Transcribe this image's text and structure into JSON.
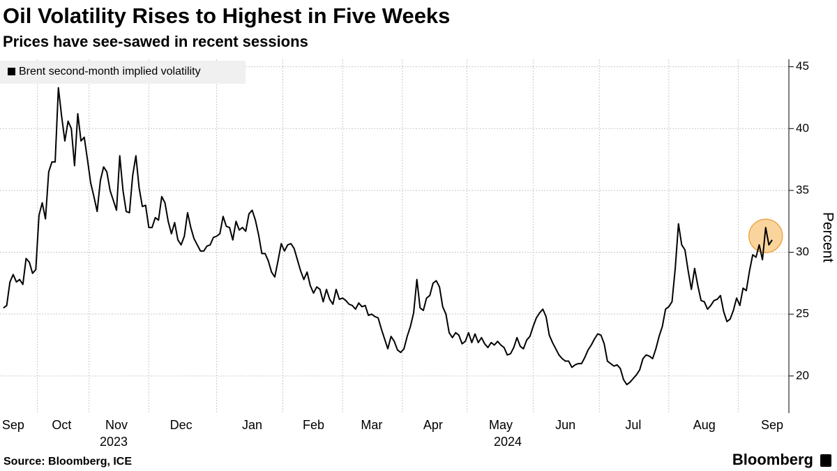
{
  "chart_data": {
    "type": "line",
    "title": "Oil Volatility Rises to Highest in Five Weeks",
    "subtitle": "Prices have see-sawed in recent sessions",
    "y_label": "Percent",
    "categories": [
      null,
      null,
      null,
      "Sep",
      null,
      null,
      null,
      null,
      null,
      null,
      null,
      null,
      null,
      null,
      null,
      null,
      null,
      null,
      "Oct",
      null,
      null,
      null,
      null,
      null,
      null,
      null,
      null,
      null,
      null,
      null,
      null,
      null,
      null,
      null,
      null,
      "Nov",
      null,
      null,
      null,
      null,
      null,
      null,
      null,
      null,
      null,
      null,
      null,
      null,
      null,
      null,
      null,
      null,
      null,
      null,
      null,
      "Dec",
      null,
      null,
      null,
      null,
      null,
      null,
      null,
      null,
      null,
      null,
      null,
      null,
      null,
      null,
      null,
      null,
      null,
      null,
      null,
      null,
      null,
      "Jan",
      null,
      null,
      null,
      null,
      null,
      null,
      null,
      null,
      null,
      null,
      null,
      null,
      null,
      null,
      null,
      null,
      null,
      null,
      "Feb",
      null,
      null,
      null,
      null,
      null,
      null,
      null,
      null,
      null,
      null,
      null,
      null,
      null,
      null,
      null,
      null,
      null,
      "Mar",
      null,
      null,
      null,
      null,
      null,
      null,
      null,
      null,
      null,
      null,
      null,
      null,
      null,
      null,
      null,
      null,
      null,
      null,
      "Apr",
      null,
      null,
      null,
      null,
      null,
      null,
      null,
      null,
      null,
      null,
      null,
      null,
      null,
      null,
      null,
      null,
      null,
      null,
      null,
      null,
      "May",
      null,
      null,
      null,
      null,
      null,
      null,
      null,
      null,
      null,
      null,
      null,
      null,
      null,
      null,
      null,
      null,
      null,
      null,
      null,
      "Jun",
      null,
      null,
      null,
      null,
      null,
      null,
      null,
      null,
      null,
      null,
      null,
      null,
      null,
      null,
      null,
      null,
      null,
      null,
      null,
      null,
      "Jul",
      null,
      null,
      null,
      null,
      null,
      null,
      null,
      null,
      null,
      null,
      null,
      null,
      null,
      null,
      null,
      null,
      null,
      null,
      null,
      null,
      null,
      "Aug",
      null,
      null,
      null,
      null,
      null,
      null,
      null,
      null,
      null,
      null,
      null,
      null,
      null,
      null,
      null,
      null,
      null,
      null,
      null,
      null,
      "Sep"
    ],
    "x_group_labels": [
      "2023",
      "2024"
    ],
    "series": [
      {
        "name": "Brent second-month implied volatility",
        "color": "#000000",
        "values": [
          25.5,
          25.7,
          27.6,
          28.2,
          27.6,
          27.8,
          27.4,
          29.5,
          29.2,
          28.3,
          28.6,
          33,
          34,
          32.7,
          36.5,
          37.3,
          37.3,
          43.3,
          41,
          39,
          40.6,
          40,
          37,
          41.2,
          39,
          39.3,
          37.5,
          35.6,
          34.5,
          33.3,
          35.8,
          36.9,
          36.5,
          35,
          34.2,
          33.4,
          37.8,
          35,
          33.3,
          33.2,
          36.2,
          37.8,
          35.2,
          33.7,
          33.8,
          32,
          32,
          32.8,
          32.6,
          34.5,
          34,
          32.5,
          31.5,
          32.4,
          31,
          30.6,
          31.3,
          33.2,
          32,
          31.1,
          30.6,
          30.1,
          30.1,
          30.5,
          30.6,
          31.2,
          31.3,
          31.5,
          32.9,
          32.1,
          32,
          31,
          32.5,
          31.8,
          32,
          31.7,
          33.1,
          33.4,
          32.6,
          31.4,
          29.9,
          29.9,
          29.3,
          28.4,
          28,
          29.3,
          30.7,
          30.1,
          30.6,
          30.7,
          30.3,
          29.4,
          28.5,
          27.8,
          28.4,
          27.3,
          26.7,
          27.2,
          27,
          26,
          27,
          26.2,
          25.8,
          27,
          26.2,
          26.3,
          26.1,
          25.8,
          25.7,
          25.4,
          25.9,
          25.6,
          25.7,
          24.9,
          25,
          24.8,
          24.7,
          23.8,
          23,
          22.2,
          23.2,
          22.8,
          22.1,
          21.9,
          22.2,
          23.2,
          24,
          25.1,
          27.8,
          25.5,
          25.3,
          26.3,
          26.5,
          27.5,
          27.7,
          27.2,
          25.6,
          25,
          23.5,
          23.1,
          23.5,
          23.3,
          22.6,
          22.8,
          23.5,
          22.7,
          23.4,
          22.7,
          23.1,
          22.6,
          22.3,
          22.7,
          22.5,
          22.8,
          22.5,
          22.3,
          21.7,
          21.8,
          22.3,
          23.1,
          22.4,
          22.2,
          22.9,
          23.2,
          24,
          24.7,
          25.1,
          25.4,
          24.8,
          23.3,
          22.7,
          22.2,
          21.7,
          21.4,
          21.2,
          21.2,
          20.7,
          20.9,
          21,
          21,
          21.5,
          22.1,
          22.5,
          23,
          23.4,
          23.3,
          22.6,
          21.2,
          21,
          20.8,
          20.9,
          20.6,
          19.7,
          19.3,
          19.5,
          19.8,
          20.1,
          20.5,
          21.4,
          21.7,
          21.6,
          21.4,
          22.2,
          23.2,
          24,
          25.4,
          25.6,
          26,
          28.7,
          32.3,
          30.6,
          30.2,
          28.5,
          27,
          28.7,
          27.3,
          26.1,
          26,
          25.4,
          25.7,
          26.1,
          26.2,
          26.5,
          25.2,
          24.4,
          24.6,
          25.3,
          26.3,
          25.7,
          27.1,
          26.9,
          28.5,
          29.8,
          29.6,
          30.6,
          29.4,
          32,
          30.6,
          31
        ]
      }
    ],
    "ylim": [
      17,
      45.6
    ],
    "yticks": [
      20,
      25,
      30,
      35,
      40,
      45
    ],
    "grid": true,
    "legend": "top-left"
  },
  "source": "Source: Bloomberg, ICE",
  "brand": "Bloomberg"
}
